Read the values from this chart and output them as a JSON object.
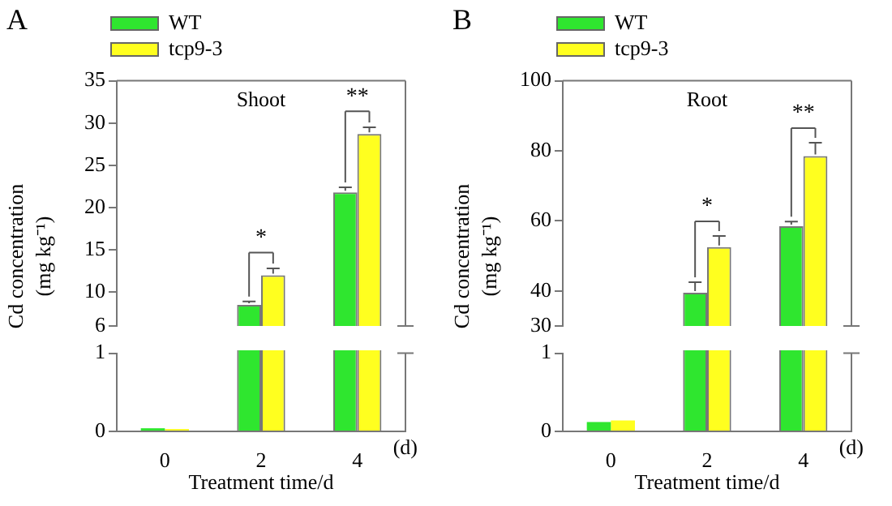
{
  "chart_data": [
    {
      "type": "bar",
      "title": "Shoot",
      "categories": [
        "0",
        "2",
        "4"
      ],
      "ylabel": "Cd concentration (mg kg⁻¹)",
      "ylim": [
        6,
        35
      ],
      "yticks": [
        6,
        10,
        15,
        20,
        25,
        30,
        35
      ],
      "tick_labels": "y",
      "legend": "top left",
      "series": [
        {
          "name": "WT",
          "color": "#2fe62f",
          "values": [
            null,
            8.5,
            21.8
          ],
          "errors": [
            null,
            0.4,
            0.6
          ]
        },
        {
          "name": "tcp9-3",
          "color": "#ffff1f",
          "values": [
            null,
            12,
            28.7
          ],
          "errors": [
            null,
            0.8,
            0.8
          ]
        }
      ],
      "annotations": [
        "A",
        {
          "text": "*",
          "x": "2",
          "y": 12
        },
        {
          "text": "**",
          "x": "4",
          "y": 28.7
        }
      ]
    },
    {
      "type": "bar",
      "categories": [
        "0",
        "2",
        "4"
      ],
      "xlabel": "Treatment time/d",
      "ylim": [
        0,
        1
      ],
      "yticks": [
        0,
        1
      ],
      "series": [
        {
          "color": "#2fe62f",
          "values": [
            0.04,
            null,
            null
          ]
        },
        {
          "color": "#ffff1f",
          "values": [
            0.03,
            null,
            null
          ]
        }
      ],
      "annotations": [
        "(d)"
      ]
    },
    {
      "type": "bar",
      "title": "Root",
      "categories": [
        "0",
        "2",
        "4"
      ],
      "ylabel": "Cd concentration (mg kg⁻¹)",
      "ylim": [
        30,
        100
      ],
      "yticks": [
        30,
        40,
        60,
        80,
        100
      ],
      "tick_labels": "y",
      "legend": "top left",
      "series": [
        {
          "name": "WT",
          "color": "#2fe62f",
          "values": [
            null,
            39.5,
            58.5
          ],
          "errors": [
            null,
            3,
            1.3
          ]
        },
        {
          "name": "tcp9-3",
          "color": "#ffff1f",
          "values": [
            null,
            52.5,
            78.5
          ],
          "errors": [
            null,
            3.2,
            3.8
          ]
        }
      ],
      "annotations": [
        "B",
        {
          "text": "*",
          "x": "2",
          "y": 52.5
        },
        {
          "text": "**",
          "x": "4",
          "y": 78.5
        }
      ]
    },
    {
      "type": "bar",
      "categories": [
        "0",
        "2",
        "4"
      ],
      "xlabel": "Treatment time/d",
      "ylim": [
        0,
        1
      ],
      "yticks": [
        0,
        1
      ],
      "series": [
        {
          "color": "#2fe62f",
          "values": [
            0.12,
            null,
            null
          ]
        },
        {
          "color": "#ffff1f",
          "values": [
            0.14,
            null,
            null
          ]
        }
      ],
      "annotations": [
        "(d)"
      ]
    }
  ]
}
